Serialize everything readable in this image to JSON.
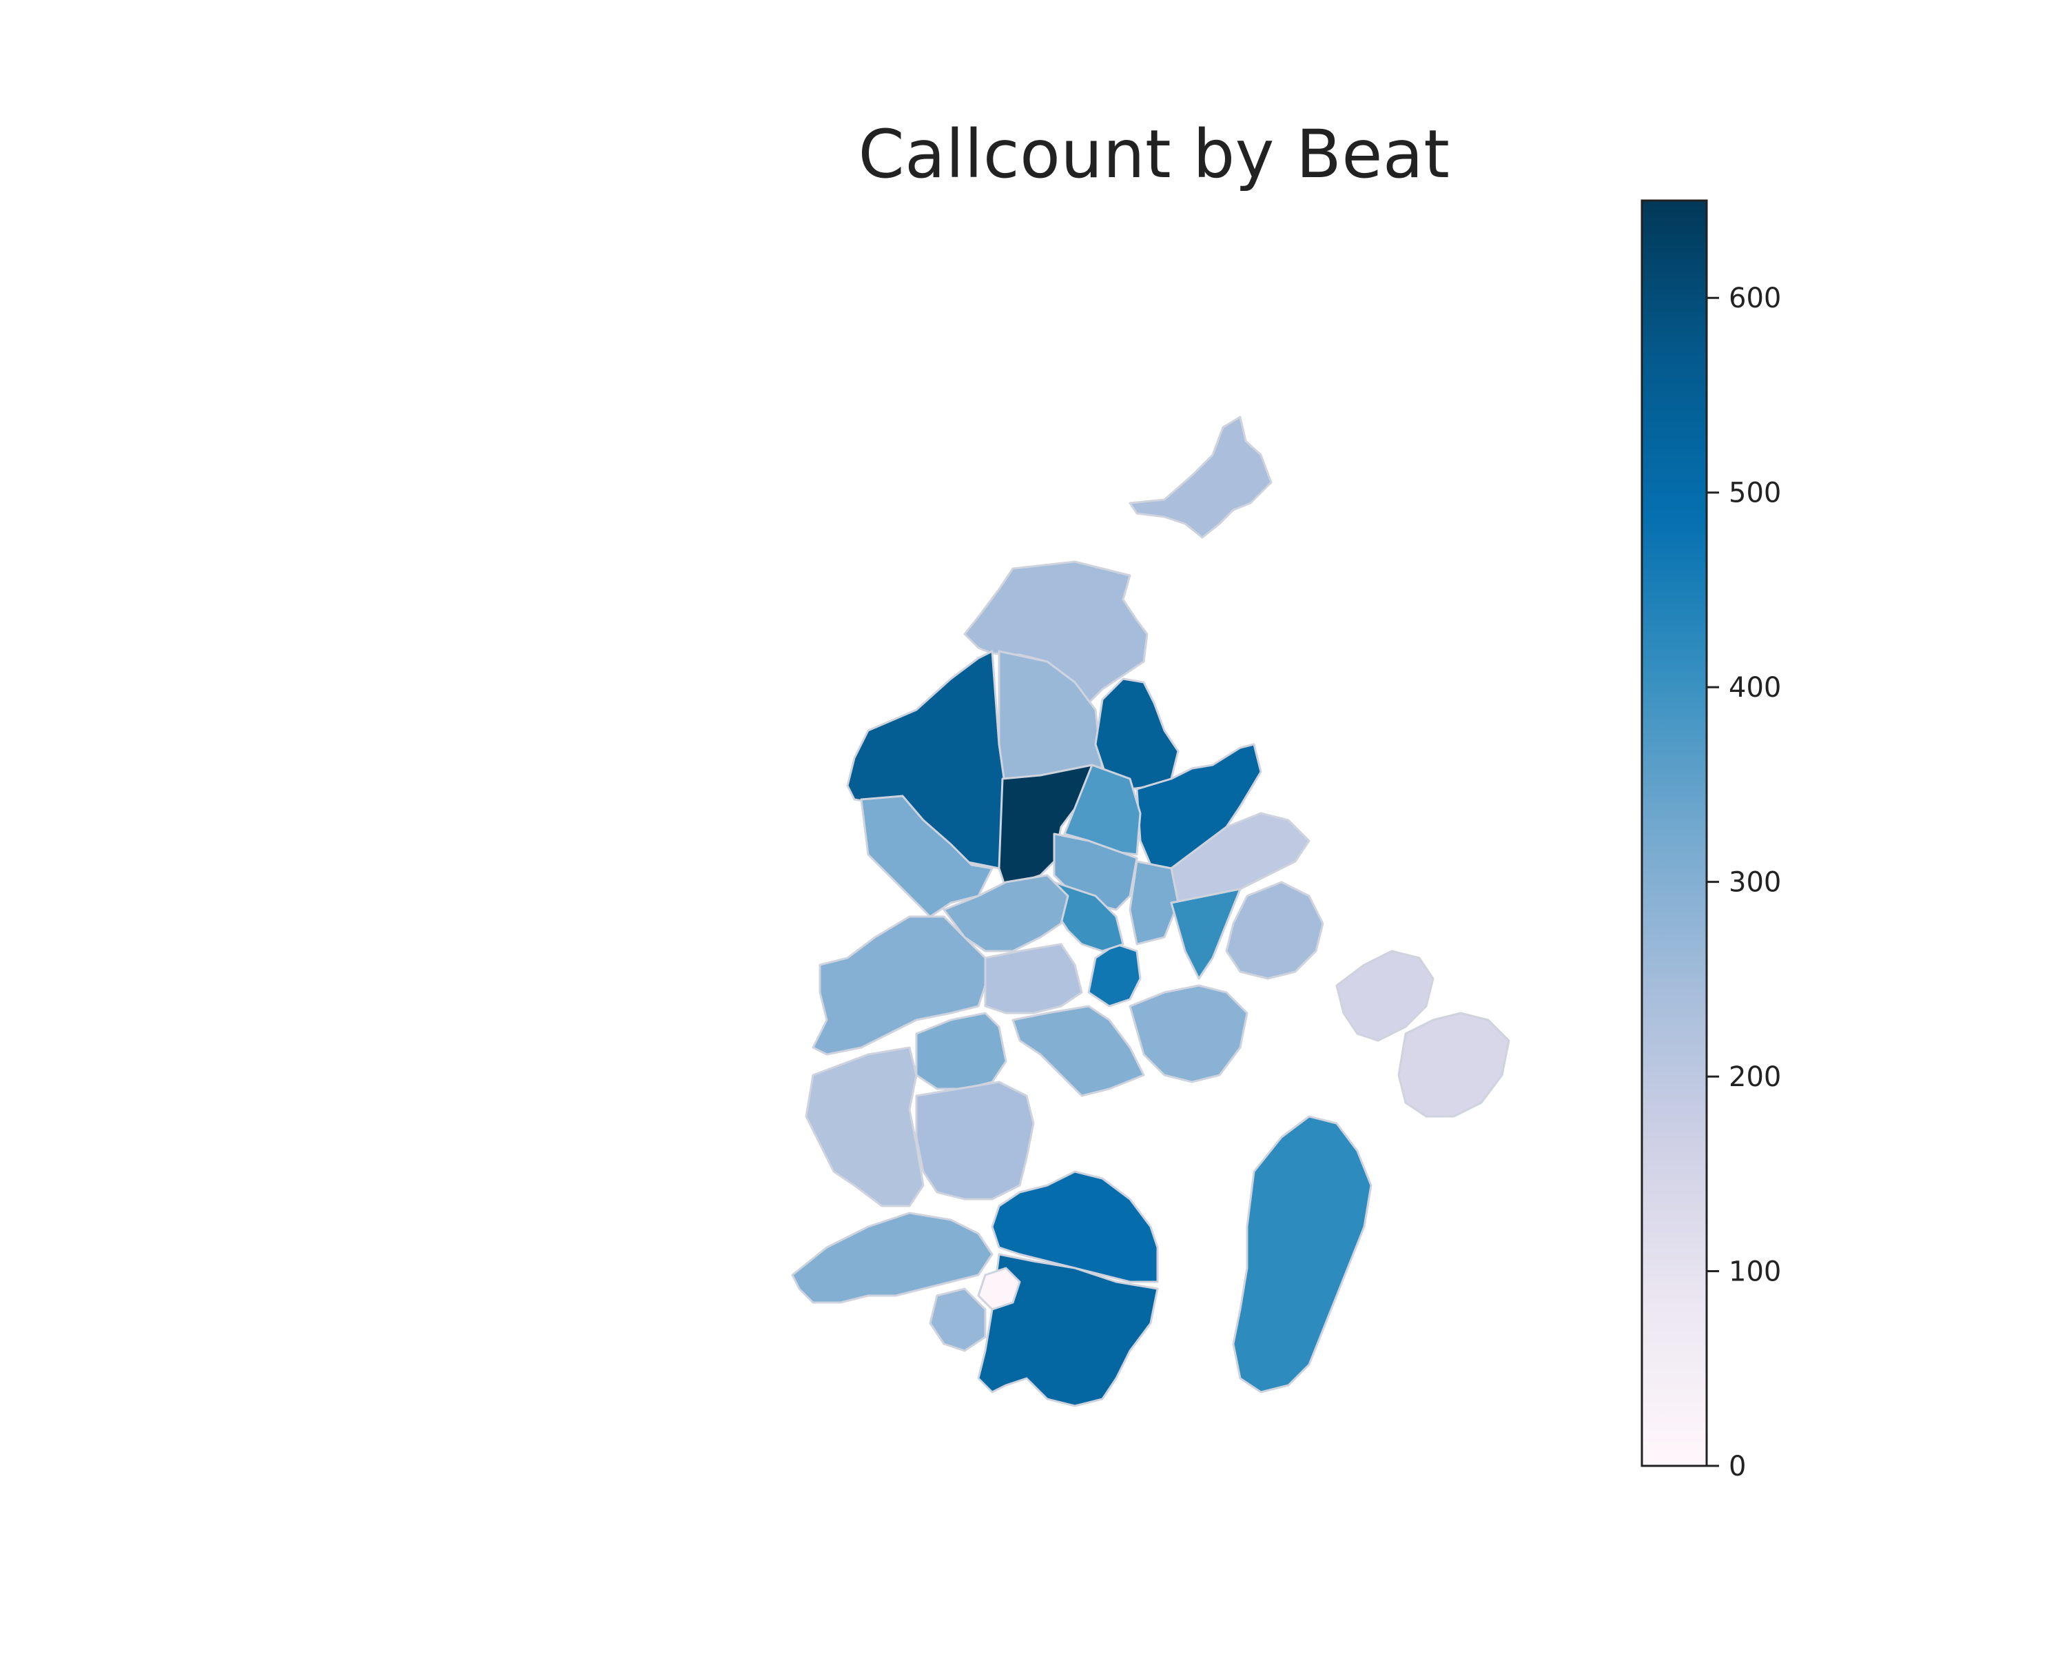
{
  "map": {
    "title": "Callcount by Beat",
    "colormap": "PuBu",
    "colorbar": {
      "min": 0,
      "max": 650,
      "ticks": [
        0,
        100,
        200,
        300,
        400,
        500,
        600
      ],
      "tick_labels": [
        "0",
        "100",
        "200",
        "300",
        "400",
        "500",
        "600"
      ],
      "stops": [
        "#fff7fb",
        "#ece7f2",
        "#d0d1e6",
        "#a6bddb",
        "#74a9cf",
        "#3690c0",
        "#0570b0",
        "#045a8d",
        "#023858"
      ]
    },
    "boundary_color": "#cfd3dd",
    "beats": [
      {
        "id": "north-far",
        "value": 235
      },
      {
        "id": "north-mid",
        "value": 245
      },
      {
        "id": "north-center",
        "value": 265
      },
      {
        "id": "northwest-big",
        "value": 555
      },
      {
        "id": "north-top-dark",
        "value": 645
      },
      {
        "id": "northeast-blue",
        "value": 540
      },
      {
        "id": "east-blue-large",
        "value": 520
      },
      {
        "id": "east-light",
        "value": 195
      },
      {
        "id": "center-mid-blue",
        "value": 375
      },
      {
        "id": "center-light-1",
        "value": 330
      },
      {
        "id": "center-light-2",
        "value": 315
      },
      {
        "id": "center-blue-2",
        "value": 470
      },
      {
        "id": "center-blue-3",
        "value": 400
      },
      {
        "id": "center-east-blue",
        "value": 410
      },
      {
        "id": "west-mid-1",
        "value": 315
      },
      {
        "id": "west-mid-2",
        "value": 300
      },
      {
        "id": "west-mid-3",
        "value": 295
      },
      {
        "id": "west-south",
        "value": 225
      },
      {
        "id": "southwest-light",
        "value": 220
      },
      {
        "id": "south-mid",
        "value": 310
      },
      {
        "id": "south-center",
        "value": 300
      },
      {
        "id": "south-center-light",
        "value": 240
      },
      {
        "id": "south-blue-1",
        "value": 500
      },
      {
        "id": "south-blue-2",
        "value": 520
      },
      {
        "id": "south-white",
        "value": 10
      },
      {
        "id": "south-small",
        "value": 270
      },
      {
        "id": "southwest-far",
        "value": 300
      },
      {
        "id": "east-mid-light",
        "value": 245
      },
      {
        "id": "east-mid-2",
        "value": 290
      },
      {
        "id": "east-far",
        "value": 150
      },
      {
        "id": "east-far-2",
        "value": 140
      },
      {
        "id": "southeast-blue",
        "value": 420
      }
    ]
  }
}
